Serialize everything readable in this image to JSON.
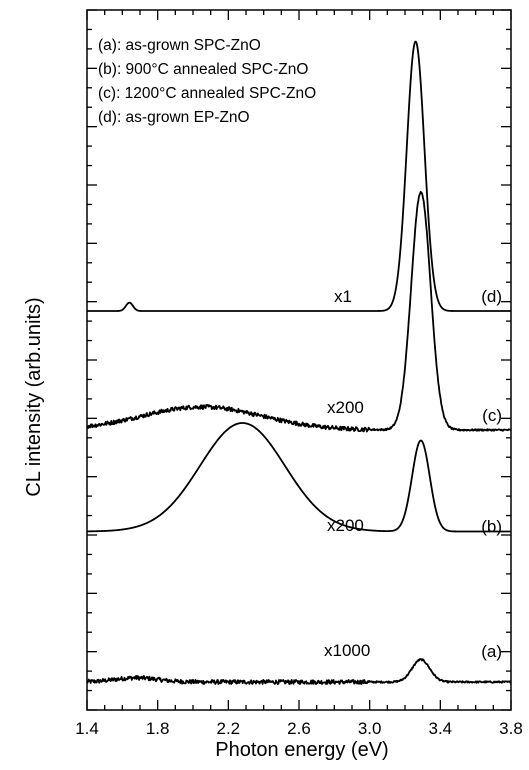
{
  "chart_data": {
    "type": "line",
    "title": "",
    "xlabel": "Photon energy (eV)",
    "ylabel": "CL intensity (arb.units)",
    "xlim": [
      1.4,
      3.8
    ],
    "ylim": [
      0,
      1
    ],
    "x_ticks": [
      "1.4",
      "1.8",
      "2.2",
      "2.6",
      "3.0",
      "3.4",
      "3.8"
    ],
    "x_tick_values": [
      1.4,
      1.8,
      2.2,
      2.6,
      3.0,
      3.4,
      3.8
    ],
    "y_tick_labels": "none",
    "grid": false,
    "legend_position": "top-left",
    "legend": [
      {
        "marker": "(a)",
        "text": ": as-grown SPC-ZnO"
      },
      {
        "marker": "(b)",
        "text": ": 900°C annealed SPC-ZnO"
      },
      {
        "marker": "(c)",
        "text": ": 1200°C annealed SPC-ZnO"
      },
      {
        "marker": "(d)",
        "text": ": as-grown EP-ZnO"
      }
    ],
    "series": [
      {
        "label": "(a)",
        "multiplier": "x1000",
        "baseline": 0.04,
        "noise": 0.003,
        "color": "#000000",
        "components": [
          {
            "center": 1.68,
            "amplitude": 0.006,
            "sigma": 0.12
          },
          {
            "center": 3.29,
            "amplitude": 0.032,
            "sigma": 0.05
          }
        ]
      },
      {
        "label": "(b)",
        "multiplier": "x200",
        "baseline": 0.255,
        "noise": 0.0,
        "color": "#000000",
        "components": [
          {
            "center": 2.28,
            "amplitude": 0.155,
            "sigma": 0.24
          },
          {
            "center": 3.29,
            "amplitude": 0.13,
            "sigma": 0.05
          }
        ]
      },
      {
        "label": "(c)",
        "multiplier": "x200",
        "baseline": 0.4,
        "noise": 0.003,
        "color": "#000000",
        "components": [
          {
            "center": 2.05,
            "amplitude": 0.033,
            "sigma": 0.34
          },
          {
            "center": 3.29,
            "amplitude": 0.34,
            "sigma": 0.055
          }
        ]
      },
      {
        "label": "(d)",
        "multiplier": "x1",
        "baseline": 0.57,
        "noise": 0.0,
        "color": "#000000",
        "components": [
          {
            "center": 1.64,
            "amplitude": 0.012,
            "sigma": 0.02
          },
          {
            "center": 3.26,
            "amplitude": 0.385,
            "sigma": 0.05
          }
        ]
      }
    ]
  }
}
